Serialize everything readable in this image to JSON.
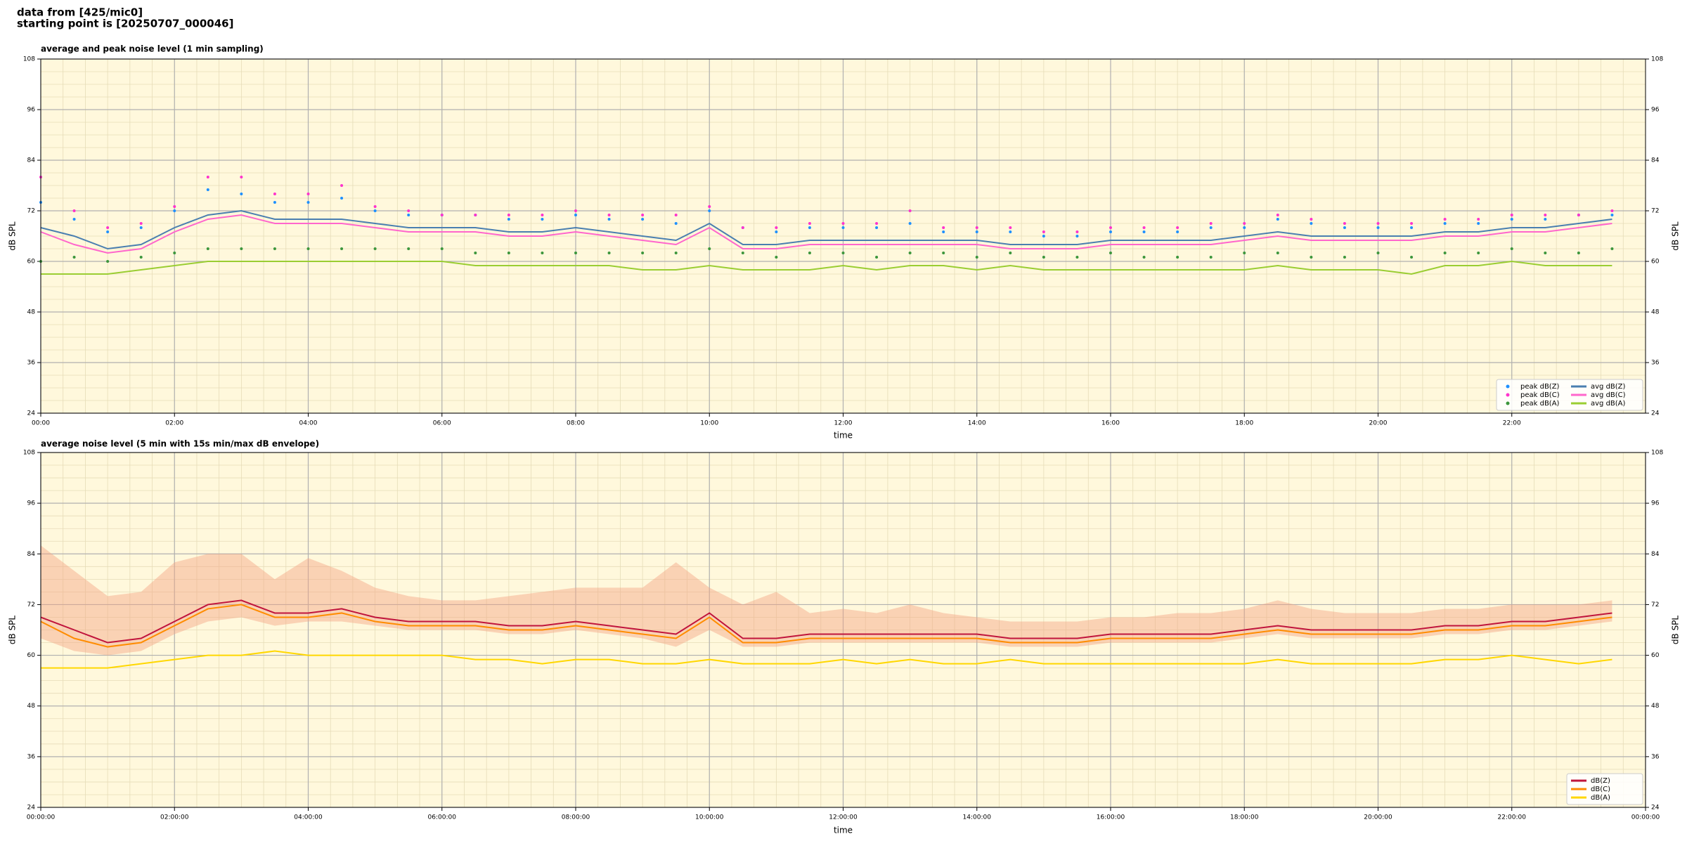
{
  "header": {
    "line1": "data from [425/mic0]",
    "line2": "starting point is [20250707_000046]"
  },
  "chart_data": [
    {
      "type": "line",
      "title": "average and peak noise level (1 min sampling)",
      "x_label": "time",
      "y_label": "dB SPL",
      "background": "#fff8dc",
      "grid": true,
      "minor_grid": true,
      "legend": "lower right",
      "legend_columns": 2,
      "xlim": [
        0,
        24
      ],
      "ylim": [
        24,
        108
      ],
      "xticks": [
        {
          "value": 0,
          "label": "00:00"
        },
        {
          "value": 2,
          "label": "02:00"
        },
        {
          "value": 4,
          "label": "04:00"
        },
        {
          "value": 6,
          "label": "06:00"
        },
        {
          "value": 8,
          "label": "08:00"
        },
        {
          "value": 10,
          "label": "10:00"
        },
        {
          "value": 12,
          "label": "12:00"
        },
        {
          "value": 14,
          "label": "14:00"
        },
        {
          "value": 16,
          "label": "16:00"
        },
        {
          "value": 18,
          "label": "18:00"
        },
        {
          "value": 20,
          "label": "20:00"
        },
        {
          "value": 22,
          "label": "22:00"
        }
      ],
      "yticks": [
        24,
        36,
        48,
        60,
        72,
        84,
        96,
        108
      ],
      "x": [
        0,
        0.5,
        1,
        1.5,
        2,
        2.5,
        3,
        3.5,
        4,
        4.5,
        5,
        5.5,
        6,
        6.5,
        7,
        7.5,
        8,
        8.5,
        9,
        9.5,
        10,
        10.5,
        11,
        11.5,
        12,
        12.5,
        13,
        13.5,
        14,
        14.5,
        15,
        15.5,
        16,
        16.5,
        17,
        17.5,
        18,
        18.5,
        19,
        19.5,
        20,
        20.5,
        21,
        21.5,
        22,
        22.5,
        23,
        23.5
      ],
      "series": [
        {
          "name": "peak dB(Z)",
          "style": "scatter",
          "color": "#1e90ff",
          "values": [
            74,
            70,
            67,
            68,
            72,
            77,
            76,
            74,
            74,
            75,
            72,
            71,
            71,
            71,
            70,
            70,
            71,
            70,
            70,
            69,
            72,
            68,
            67,
            68,
            68,
            68,
            69,
            67,
            67,
            67,
            66,
            66,
            67,
            67,
            67,
            68,
            68,
            70,
            69,
            68,
            68,
            68,
            69,
            69,
            70,
            70,
            71,
            71
          ]
        },
        {
          "name": "peak dB(C)",
          "style": "scatter",
          "color": "#ff33cc",
          "values": [
            80,
            72,
            68,
            69,
            73,
            80,
            80,
            76,
            76,
            78,
            73,
            72,
            71,
            71,
            71,
            71,
            72,
            71,
            71,
            71,
            73,
            68,
            68,
            69,
            69,
            69,
            72,
            68,
            68,
            68,
            67,
            67,
            68,
            68,
            68,
            69,
            69,
            71,
            70,
            69,
            69,
            69,
            70,
            70,
            71,
            71,
            71,
            72
          ]
        },
        {
          "name": "peak dB(A)",
          "style": "scatter",
          "color": "#3c963c",
          "values": [
            60,
            61,
            60,
            61,
            62,
            63,
            63,
            63,
            63,
            63,
            63,
            63,
            63,
            62,
            62,
            62,
            62,
            62,
            62,
            62,
            63,
            62,
            61,
            62,
            62,
            61,
            62,
            62,
            61,
            62,
            61,
            61,
            62,
            61,
            61,
            61,
            62,
            62,
            61,
            61,
            62,
            61,
            62,
            62,
            63,
            62,
            62,
            63
          ]
        },
        {
          "name": "avg dB(Z)",
          "style": "line",
          "color": "#4a7fb0",
          "values": [
            68,
            66,
            63,
            64,
            68,
            71,
            72,
            70,
            70,
            70,
            69,
            68,
            68,
            68,
            67,
            67,
            68,
            67,
            66,
            65,
            69,
            64,
            64,
            65,
            65,
            65,
            65,
            65,
            65,
            64,
            64,
            64,
            65,
            65,
            65,
            65,
            66,
            67,
            66,
            66,
            66,
            66,
            67,
            67,
            68,
            68,
            69,
            70
          ]
        },
        {
          "name": "avg dB(C)",
          "style": "line",
          "color": "#ff66cc",
          "values": [
            67,
            64,
            62,
            63,
            67,
            70,
            71,
            69,
            69,
            69,
            68,
            67,
            67,
            67,
            66,
            66,
            67,
            66,
            65,
            64,
            68,
            63,
            63,
            64,
            64,
            64,
            64,
            64,
            64,
            63,
            63,
            63,
            64,
            64,
            64,
            64,
            65,
            66,
            65,
            65,
            65,
            65,
            66,
            66,
            67,
            67,
            68,
            69
          ]
        },
        {
          "name": "avg dB(A)",
          "style": "line",
          "color": "#9acd32",
          "values": [
            57,
            57,
            57,
            58,
            59,
            60,
            60,
            60,
            60,
            60,
            60,
            60,
            60,
            59,
            59,
            59,
            59,
            59,
            58,
            58,
            59,
            58,
            58,
            58,
            59,
            58,
            59,
            59,
            58,
            59,
            58,
            58,
            58,
            58,
            58,
            58,
            58,
            59,
            58,
            58,
            58,
            57,
            59,
            59,
            60,
            59,
            59,
            59
          ]
        }
      ]
    },
    {
      "type": "line",
      "title": "average noise level (5 min with 15s min/max dB envelope)",
      "x_label": "time",
      "y_label": "dB SPL",
      "background": "#fff8dc",
      "grid": true,
      "minor_grid": true,
      "legend": "lower right",
      "legend_columns": 1,
      "xlim": [
        0,
        24
      ],
      "ylim": [
        24,
        108
      ],
      "xticks": [
        {
          "value": 0,
          "label": "00:00:00"
        },
        {
          "value": 2,
          "label": "02:00:00"
        },
        {
          "value": 4,
          "label": "04:00:00"
        },
        {
          "value": 6,
          "label": "06:00:00"
        },
        {
          "value": 8,
          "label": "08:00:00"
        },
        {
          "value": 10,
          "label": "10:00:00"
        },
        {
          "value": 12,
          "label": "12:00:00"
        },
        {
          "value": 14,
          "label": "14:00:00"
        },
        {
          "value": 16,
          "label": "16:00:00"
        },
        {
          "value": 18,
          "label": "18:00:00"
        },
        {
          "value": 20,
          "label": "20:00:00"
        },
        {
          "value": 22,
          "label": "22:00:00"
        },
        {
          "value": 24,
          "label": "00:00:00"
        }
      ],
      "yticks": [
        24,
        36,
        48,
        60,
        72,
        84,
        96,
        108
      ],
      "x": [
        0,
        0.5,
        1,
        1.5,
        2,
        2.5,
        3,
        3.5,
        4,
        4.5,
        5,
        5.5,
        6,
        6.5,
        7,
        7.5,
        8,
        8.5,
        9,
        9.5,
        10,
        10.5,
        11,
        11.5,
        12,
        12.5,
        13,
        13.5,
        14,
        14.5,
        15,
        15.5,
        16,
        16.5,
        17,
        17.5,
        18,
        18.5,
        19,
        19.5,
        20,
        20.5,
        21,
        21.5,
        22,
        22.5,
        23,
        23.5
      ],
      "envelope": {
        "color": "#f4a582",
        "max": [
          86,
          80,
          74,
          75,
          82,
          84,
          84,
          78,
          83,
          80,
          76,
          74,
          73,
          73,
          74,
          75,
          76,
          76,
          76,
          82,
          76,
          72,
          75,
          70,
          71,
          70,
          72,
          70,
          69,
          68,
          68,
          68,
          69,
          69,
          70,
          70,
          71,
          73,
          71,
          70,
          70,
          70,
          71,
          71,
          72,
          72,
          72,
          73
        ],
        "min": [
          64,
          61,
          60,
          61,
          65,
          68,
          69,
          67,
          68,
          68,
          67,
          66,
          66,
          66,
          65,
          65,
          66,
          65,
          64,
          62,
          66,
          62,
          62,
          63,
          63,
          63,
          63,
          63,
          63,
          62,
          62,
          62,
          63,
          63,
          63,
          63,
          64,
          65,
          64,
          64,
          64,
          64,
          65,
          65,
          66,
          66,
          67,
          68
        ]
      },
      "series": [
        {
          "name": "dB(Z)",
          "style": "line",
          "color": "#c0143c",
          "values": [
            69,
            66,
            63,
            64,
            68,
            72,
            73,
            70,
            70,
            71,
            69,
            68,
            68,
            68,
            67,
            67,
            68,
            67,
            66,
            65,
            70,
            64,
            64,
            65,
            65,
            65,
            65,
            65,
            65,
            64,
            64,
            64,
            65,
            65,
            65,
            65,
            66,
            67,
            66,
            66,
            66,
            66,
            67,
            67,
            68,
            68,
            69,
            70
          ]
        },
        {
          "name": "dB(C)",
          "style": "line",
          "color": "#ff8c00",
          "values": [
            68,
            64,
            62,
            63,
            67,
            71,
            72,
            69,
            69,
            70,
            68,
            67,
            67,
            67,
            66,
            66,
            67,
            66,
            65,
            64,
            69,
            63,
            63,
            64,
            64,
            64,
            64,
            64,
            64,
            63,
            63,
            63,
            64,
            64,
            64,
            64,
            65,
            66,
            65,
            65,
            65,
            65,
            66,
            66,
            67,
            67,
            68,
            69
          ]
        },
        {
          "name": "dB(A)",
          "style": "line",
          "color": "#ffd700",
          "values": [
            57,
            57,
            57,
            58,
            59,
            60,
            60,
            61,
            60,
            60,
            60,
            60,
            60,
            59,
            59,
            58,
            59,
            59,
            58,
            58,
            59,
            58,
            58,
            58,
            59,
            58,
            59,
            58,
            58,
            59,
            58,
            58,
            58,
            58,
            58,
            58,
            58,
            59,
            58,
            58,
            58,
            58,
            59,
            59,
            60,
            59,
            58,
            59
          ]
        }
      ]
    }
  ]
}
